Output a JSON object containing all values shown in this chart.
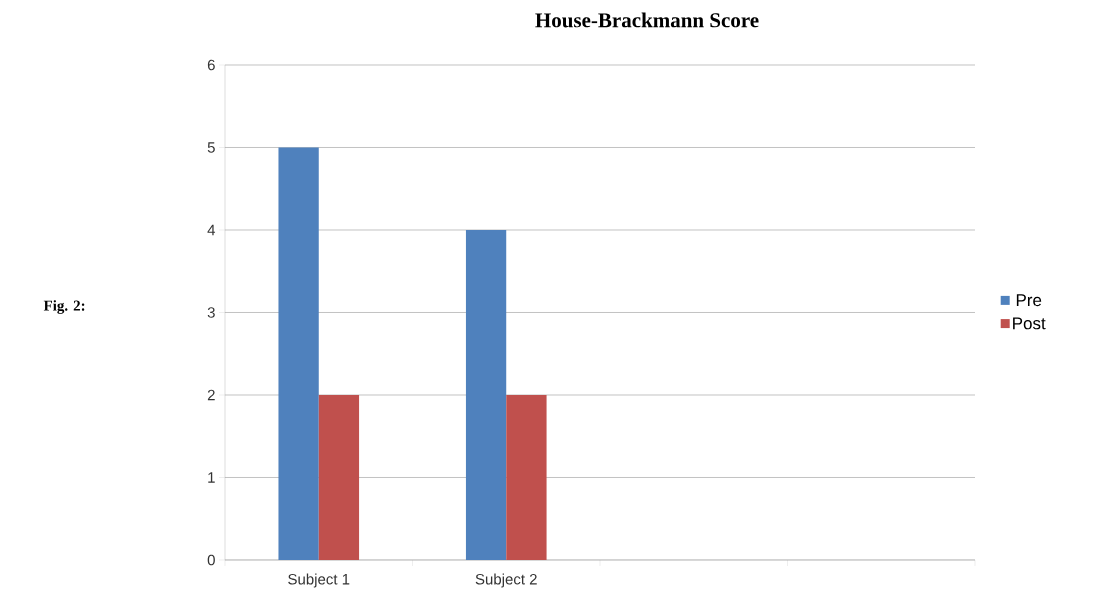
{
  "chart_data": {
    "type": "bar",
    "title": "House-Brackmann Score",
    "categories": [
      "Subject 1",
      "Subject 2",
      null,
      null
    ],
    "series": [
      {
        "name": "Pre",
        "color": "#4f81bd",
        "values": [
          5,
          4,
          null,
          null
        ]
      },
      {
        "name": "Post",
        "color": "#c0504d",
        "values": [
          2,
          2,
          null,
          null
        ]
      }
    ],
    "ylim": [
      0,
      6
    ],
    "yticks": [
      0,
      1,
      2,
      3,
      4,
      5,
      6
    ],
    "grid": "y",
    "legend": "right",
    "annotations": [
      "**Fig. 2:**"
    ]
  }
}
